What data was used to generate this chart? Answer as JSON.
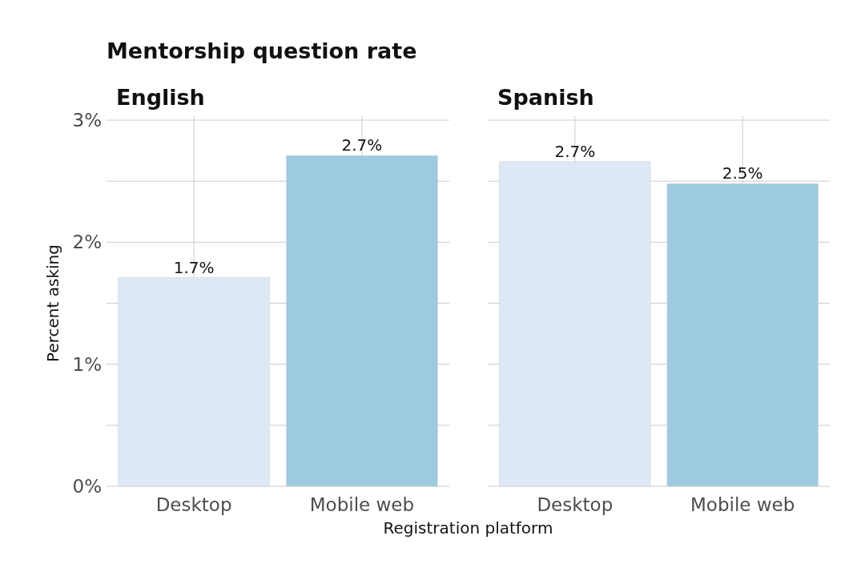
{
  "chart_data": [
    {
      "type": "bar",
      "title": "Mentorship question rate",
      "subtitle": "English",
      "ylabel": "Percent asking",
      "xlabel": "Registration platform",
      "categories": [
        "Desktop",
        "Mobile web"
      ],
      "values": [
        1.71,
        2.71
      ],
      "colors": [
        "#dde9f5",
        "#9ecae1"
      ],
      "value_labels": [
        "1.7%",
        "2.7%"
      ],
      "ylim": [
        0,
        3
      ],
      "yticks": [
        {
          "value": 0,
          "label": "0%"
        },
        {
          "value": 0.5,
          "label": null
        },
        {
          "value": 1,
          "label": "1%"
        },
        {
          "value": 1.5,
          "label": null
        },
        {
          "value": 2,
          "label": "2%"
        },
        {
          "value": 2.5,
          "label": null
        },
        {
          "value": 3,
          "label": "3%"
        }
      ],
      "grid": true
    },
    {
      "type": "bar",
      "subtitle": "Spanish",
      "categories": [
        "Desktop",
        "Mobile web"
      ],
      "values": [
        2.66,
        2.48
      ],
      "colors": [
        "#dde9f5",
        "#9ecae1"
      ],
      "value_labels": [
        "2.7%",
        "2.5%"
      ],
      "ylim": [
        0,
        3
      ],
      "yticks": [
        {
          "value": 0,
          "label": null
        },
        {
          "value": 0.5,
          "label": null
        },
        {
          "value": 1,
          "label": null
        },
        {
          "value": 1.5,
          "label": null
        },
        {
          "value": 2,
          "label": null
        },
        {
          "value": 2.5,
          "label": null
        },
        {
          "value": 3,
          "label": null
        }
      ],
      "grid": true,
      "tick_labels": "x"
    }
  ]
}
